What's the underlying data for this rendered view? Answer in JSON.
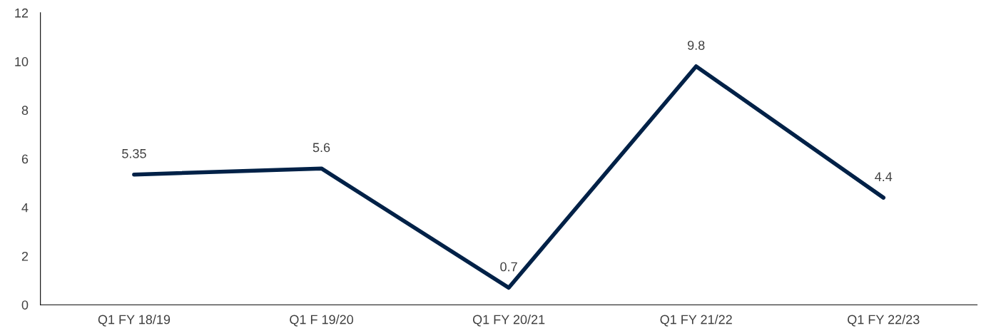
{
  "chart_data": {
    "type": "line",
    "categories": [
      "Q1 FY 18/19",
      "Q1 F 19/20",
      "Q1 FY 20/21",
      "Q1 FY 21/22",
      "Q1 FY 22/23"
    ],
    "series": [
      {
        "color": "#002147",
        "values": [
          5.35,
          5.6,
          0.7,
          9.8,
          4.4
        ]
      }
    ],
    "ylim": [
      0,
      12
    ],
    "yticks": [
      0,
      2,
      4,
      6,
      8,
      10,
      12
    ],
    "data_labels": true,
    "grid": false,
    "legend": false,
    "marker": "none",
    "line_style": "solid"
  }
}
